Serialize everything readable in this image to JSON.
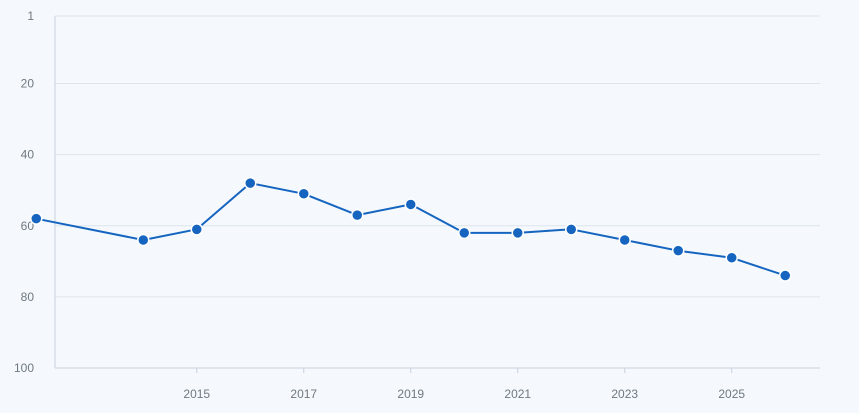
{
  "chart_data": {
    "type": "line",
    "title": "",
    "xlabel": "",
    "ylabel": "",
    "y_reversed": true,
    "ylim": [
      1,
      100
    ],
    "yticks": [
      1,
      20,
      40,
      60,
      80,
      100
    ],
    "xlim": [
      2012.35,
      2026.65
    ],
    "xticks": [
      2015,
      2017,
      2019,
      2021,
      2023,
      2025
    ],
    "grid": true,
    "series": [
      {
        "color": "#1565c0",
        "points": [
          {
            "x": 2012,
            "y": 58
          },
          {
            "x": 2014,
            "y": 64
          },
          {
            "x": 2015,
            "y": 61
          },
          {
            "x": 2016,
            "y": 48
          },
          {
            "x": 2017,
            "y": 51
          },
          {
            "x": 2018,
            "y": 57
          },
          {
            "x": 2019,
            "y": 54
          },
          {
            "x": 2020,
            "y": 62
          },
          {
            "x": 2021,
            "y": 62
          },
          {
            "x": 2022,
            "y": 61
          },
          {
            "x": 2023,
            "y": 64
          },
          {
            "x": 2024,
            "y": 67
          },
          {
            "x": 2025,
            "y": 69
          },
          {
            "x": 2026,
            "y": 74
          }
        ]
      }
    ]
  }
}
